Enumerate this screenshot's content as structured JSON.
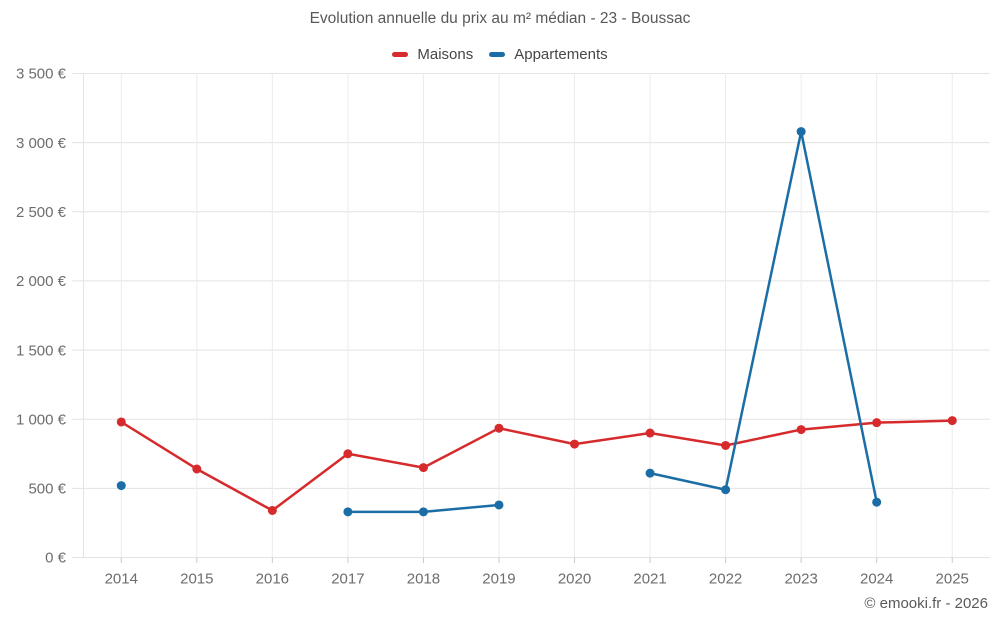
{
  "chart_data": {
    "type": "line",
    "title": "Evolution annuelle du prix au m² médian - 23 - Boussac",
    "categories": [
      "2014",
      "2015",
      "2016",
      "2017",
      "2018",
      "2019",
      "2020",
      "2021",
      "2022",
      "2023",
      "2024",
      "2025"
    ],
    "series": [
      {
        "name": "Maisons",
        "color": "#d62a2c",
        "values": [
          980,
          640,
          340,
          750,
          650,
          935,
          820,
          900,
          810,
          925,
          975,
          990
        ]
      },
      {
        "name": "Appartements",
        "color": "#1b6ea5",
        "values": [
          520,
          null,
          null,
          330,
          330,
          380,
          null,
          610,
          490,
          3080,
          400,
          null
        ]
      }
    ],
    "ylabel": "",
    "xlabel": "",
    "ylim": [
      0,
      3500
    ],
    "ytick_step": 500,
    "ytick_labels": [
      "0 €",
      "500 €",
      "1 000 €",
      "1 500 €",
      "2 000 €",
      "2 500 €",
      "3 000 €",
      "3 500 €"
    ],
    "grid": true,
    "legend_position": "top-center"
  },
  "legend": [
    {
      "label": "Maisons",
      "color": "#d62a2c"
    },
    {
      "label": "Appartements",
      "color": "#1b6ea5"
    }
  ],
  "watermark": "© emooki.fr - 2026"
}
